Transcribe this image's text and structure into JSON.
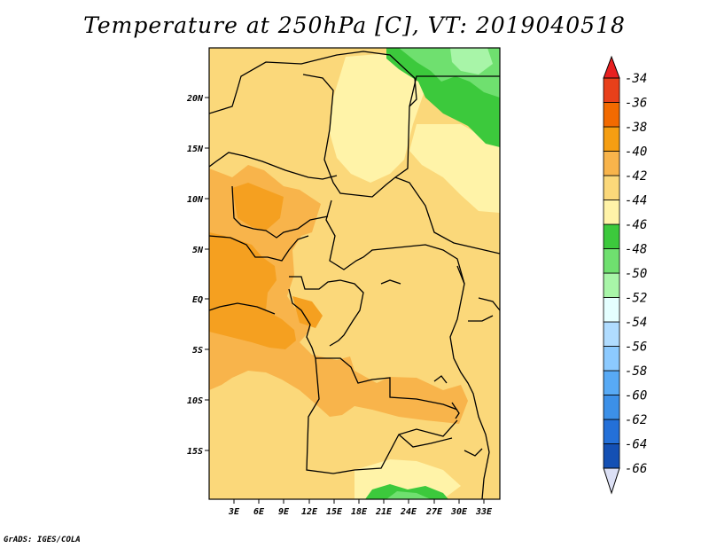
{
  "title": "Temperature at 250hPa [C], VT: 2019040518",
  "credit": "GrADS: IGES/COLA",
  "map": {
    "lon_labels": [
      "3E",
      "6E",
      "9E",
      "12E",
      "15E",
      "18E",
      "21E",
      "24E",
      "27E",
      "30E",
      "33E"
    ],
    "lat_labels": [
      "20N",
      "15N",
      "10N",
      "5N",
      "EQ",
      "5S",
      "10S",
      "15S"
    ]
  },
  "colorbar": {
    "labels": [
      "-34",
      "-36",
      "-38",
      "-40",
      "-42",
      "-44",
      "-46",
      "-48",
      "-50",
      "-52",
      "-54",
      "-56",
      "-58",
      "-60",
      "-62",
      "-64",
      "-66"
    ],
    "colors": [
      "#e8401a",
      "#f26a00",
      "#f59e12",
      "#f8b44b",
      "#fbd87a",
      "#fff3a8",
      "#3cc93c",
      "#6fe06f",
      "#a8f5a8",
      "#e5ffff",
      "#b0dcff",
      "#8ccaff",
      "#58aaf5",
      "#3c90e8",
      "#2470d8",
      "#1450b4",
      "#0a1c78"
    ],
    "top_color": "#e82020",
    "bottom_color": "#dce0f5"
  }
}
